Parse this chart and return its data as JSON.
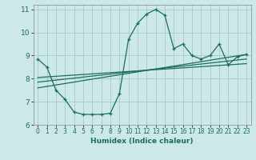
{
  "xlabel": "Humidex (Indice chaleur)",
  "ylabel": "",
  "xlim": [
    -0.5,
    23.5
  ],
  "ylim": [
    6,
    11.2
  ],
  "yticks": [
    6,
    7,
    8,
    9,
    10,
    11
  ],
  "xticks": [
    0,
    1,
    2,
    3,
    4,
    5,
    6,
    7,
    8,
    9,
    10,
    11,
    12,
    13,
    14,
    15,
    16,
    17,
    18,
    19,
    20,
    21,
    22,
    23
  ],
  "bg_color": "#cce8e8",
  "grid_color": "#aacece",
  "line_color": "#1a6e60",
  "curve1_x": [
    0,
    1,
    2,
    3,
    4,
    5,
    6,
    7,
    8,
    9,
    10,
    11,
    12,
    13,
    14,
    15,
    16,
    17,
    18,
    19,
    20,
    21,
    22,
    23
  ],
  "curve1_y": [
    8.85,
    8.5,
    7.5,
    7.1,
    6.55,
    6.45,
    6.45,
    6.45,
    6.5,
    7.35,
    9.7,
    10.4,
    10.8,
    11.0,
    10.75,
    9.3,
    9.5,
    9.0,
    8.85,
    9.0,
    9.5,
    8.6,
    8.95,
    9.05
  ],
  "line1_x": [
    0,
    23
  ],
  "line1_y": [
    7.6,
    9.05
  ],
  "line2_x": [
    0,
    23
  ],
  "line2_y": [
    7.85,
    8.85
  ],
  "line3_x": [
    0,
    23
  ],
  "line3_y": [
    8.05,
    8.65
  ]
}
